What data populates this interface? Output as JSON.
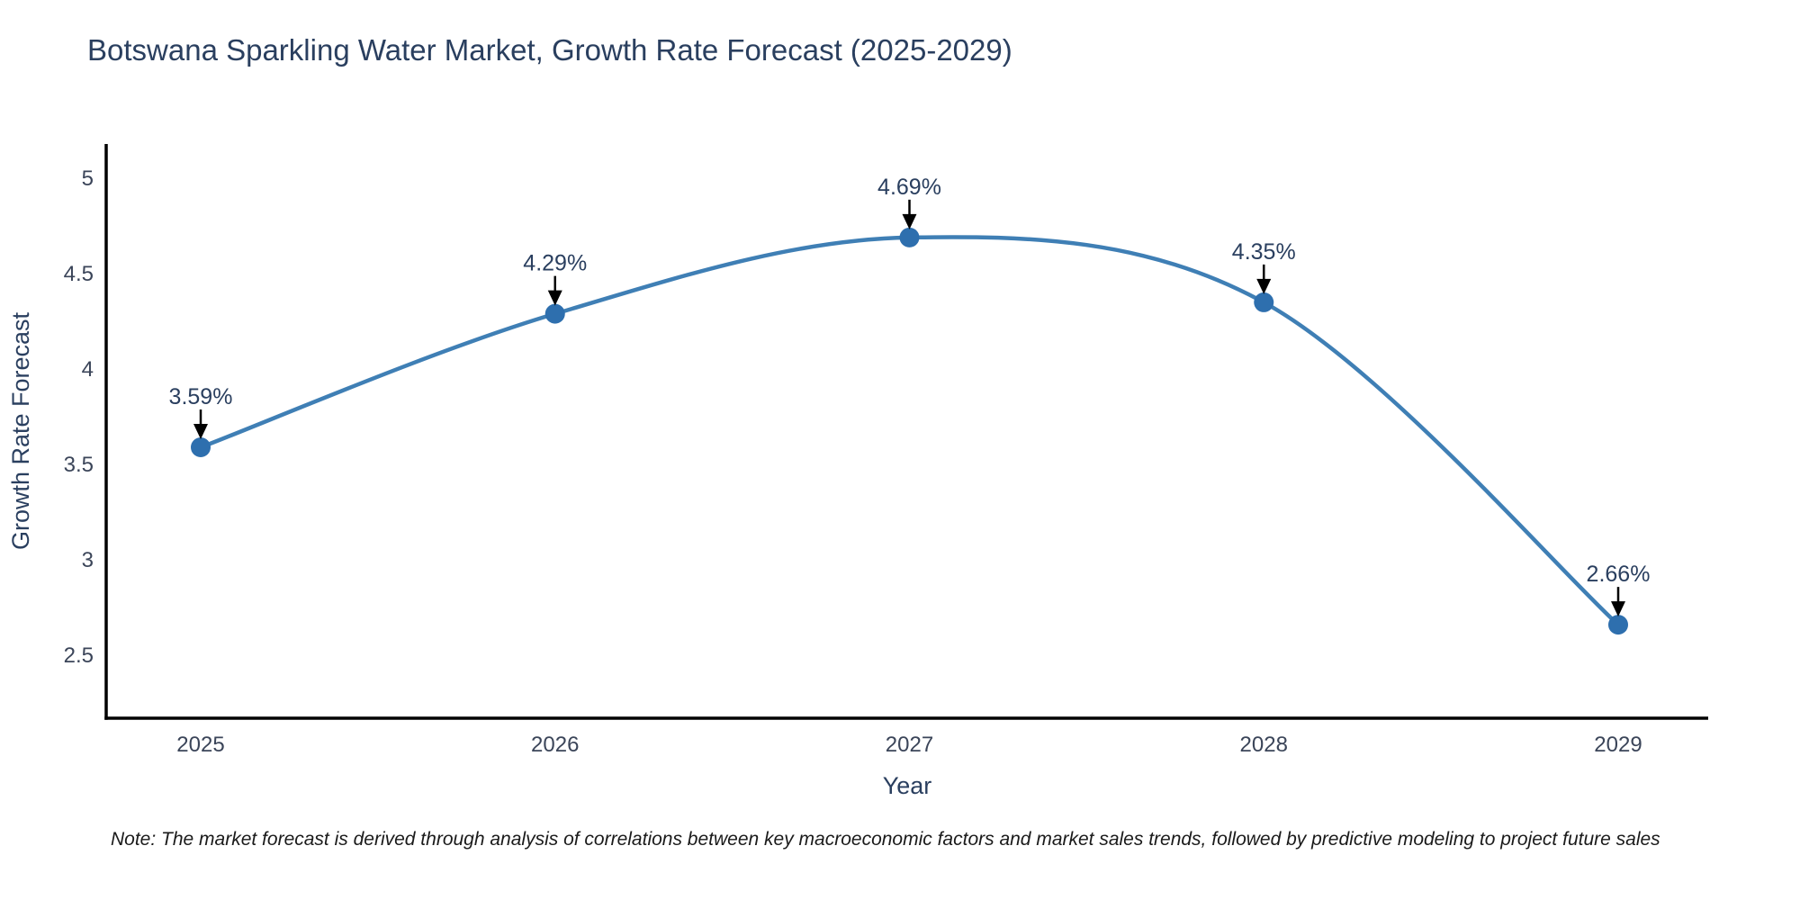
{
  "chart_data": {
    "type": "line",
    "line_shape": "spline",
    "title": "Botswana Sparkling Water Market, Growth Rate Forecast (2025-2029)",
    "xlabel": "Year",
    "ylabel": "Growth Rate Forecast",
    "x": [
      2025,
      2026,
      2027,
      2028,
      2029
    ],
    "y": [
      3.59,
      4.29,
      4.69,
      4.35,
      2.66
    ],
    "point_labels": [
      "3.59%",
      "4.29%",
      "4.69%",
      "4.35%",
      "2.66%"
    ],
    "xticks": [
      "2025",
      "2026",
      "2027",
      "2028",
      "2029"
    ],
    "yticks": [
      "2.5",
      "3",
      "3.5",
      "4",
      "4.5",
      "5"
    ],
    "ytick_values": [
      2.5,
      3,
      3.5,
      4,
      4.5,
      5
    ],
    "ylim": [
      2.17,
      5.18
    ],
    "xlim_pad_categories": 0.267,
    "grid": false,
    "legend": "none",
    "note": "Note: The market forecast is derived through analysis of correlations between key macroeconomic factors and market sales trends, followed by predictive modeling to project future sales"
  },
  "colors": {
    "background": "#ffffff",
    "line": "#3f7fb5",
    "marker": "#2e6fae",
    "axis": "#000000",
    "arrow": "#000000",
    "title_text": "#2a3f5f",
    "tick_text": "#3b4559",
    "annotation_text": "#2a3f5f",
    "note_text": "#1a1a1a"
  }
}
